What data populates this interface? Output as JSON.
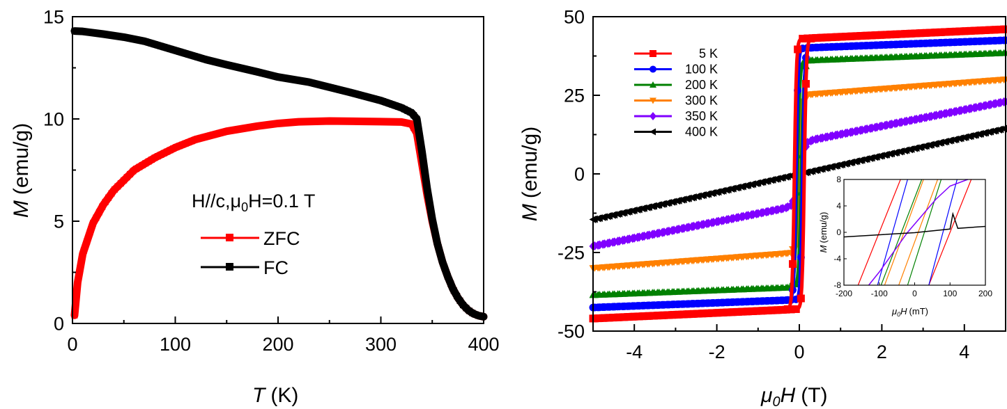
{
  "chart_data": [
    {
      "id": "left",
      "type": "line",
      "xlabel": "(K)",
      "xlabel_var": "T",
      "ylabel": "(emu/g)",
      "ylabel_var": "M",
      "xlim": [
        0,
        400
      ],
      "ylim": [
        0,
        15
      ],
      "xticks": [
        0,
        100,
        200,
        300,
        400
      ],
      "xtick_labels": [
        "0",
        "100",
        "200",
        "300",
        "400"
      ],
      "yticks": [
        0,
        5,
        10,
        15
      ],
      "ytick_labels": [
        "0",
        "5",
        "10",
        "15"
      ],
      "grid": false,
      "legend_title": "H//c,μ0H=0.1 T",
      "legend_title_parts": [
        "H//c,μ",
        "0",
        "H=0.1 T"
      ],
      "legend_position": "center",
      "series": [
        {
          "name": "ZFC",
          "color": "#ff0000",
          "x": [
            2,
            5,
            10,
            20,
            30,
            40,
            50,
            60,
            80,
            100,
            120,
            150,
            180,
            200,
            220,
            250,
            280,
            300,
            320,
            330,
            335,
            340,
            345,
            350,
            355,
            360,
            365,
            370,
            375,
            380,
            385,
            390,
            395,
            400
          ],
          "y": [
            0.4,
            2.0,
            3.4,
            4.9,
            5.8,
            6.5,
            7.0,
            7.5,
            8.1,
            8.6,
            9.0,
            9.4,
            9.65,
            9.78,
            9.86,
            9.9,
            9.88,
            9.87,
            9.85,
            9.75,
            9.3,
            7.8,
            6.3,
            5.0,
            3.9,
            3.0,
            2.3,
            1.7,
            1.25,
            0.9,
            0.65,
            0.48,
            0.38,
            0.33
          ]
        },
        {
          "name": "FC",
          "color": "#000000",
          "x": [
            2,
            10,
            30,
            50,
            70,
            100,
            130,
            150,
            180,
            200,
            230,
            250,
            270,
            300,
            320,
            330,
            335,
            340,
            345,
            350,
            355,
            360,
            365,
            370,
            375,
            380,
            385,
            390,
            395,
            400
          ],
          "y": [
            14.3,
            14.28,
            14.15,
            14.0,
            13.8,
            13.35,
            12.9,
            12.65,
            12.3,
            12.05,
            11.8,
            11.55,
            11.3,
            10.9,
            10.55,
            10.3,
            10.0,
            8.4,
            6.6,
            5.1,
            3.9,
            3.0,
            2.3,
            1.7,
            1.25,
            0.9,
            0.65,
            0.48,
            0.38,
            0.33
          ]
        }
      ]
    },
    {
      "id": "right",
      "type": "line",
      "xlabel": "(T)",
      "xlabel_var": "μ0H",
      "ylabel": "(emu/g)",
      "ylabel_var": "M",
      "xlim": [
        -5,
        5
      ],
      "ylim": [
        -50,
        50
      ],
      "xticks": [
        -4,
        -2,
        0,
        2,
        4
      ],
      "xtick_labels": [
        "-4",
        "-2",
        "0",
        "2",
        "4"
      ],
      "yticks": [
        -50,
        -25,
        0,
        25,
        50
      ],
      "ytick_labels": [
        "-50",
        "-25",
        "0",
        "25",
        "50"
      ],
      "grid": false,
      "legend_position": "top-left",
      "series": [
        {
          "name": "5 K",
          "label": "5 K",
          "color": "#ff0000",
          "marker": "square",
          "Ms": 43.0,
          "slope": 0.6,
          "Hc": 0.12,
          "w": 0.05
        },
        {
          "name": "100 K",
          "label": "100 K",
          "color": "#0000ff",
          "marker": "circle",
          "Ms": 40.0,
          "slope": 0.5,
          "Hc": 0.08,
          "w": 0.05
        },
        {
          "name": "200 K",
          "label": "200 K",
          "color": "#008000",
          "marker": "triangle-up",
          "Ms": 36.0,
          "slope": 0.5,
          "Hc": 0.05,
          "w": 0.06
        },
        {
          "name": "300 K",
          "label": "300 K",
          "color": "#ff8000",
          "marker": "triangle-down",
          "Ms": 25.0,
          "slope": 1.0,
          "Hc": 0.03,
          "w": 0.07
        },
        {
          "name": "350 K",
          "label": "350 K",
          "color": "#8000ff",
          "marker": "diamond",
          "Ms": 10.0,
          "slope": 2.6,
          "Hc": 0.02,
          "w": 0.12
        },
        {
          "name": "400 K",
          "label": "400 K",
          "color": "#000000",
          "marker": "triangle-left",
          "Ms": 0.0,
          "slope": 2.9,
          "Hc": 0.0,
          "w": 0.1
        }
      ],
      "inset": {
        "xlabel": "(mT)",
        "xlabel_var": "μ0H",
        "ylabel": "(emu/g)",
        "ylabel_var": "M",
        "xlim": [
          -200,
          200
        ],
        "ylim": [
          -8,
          8
        ],
        "xticks": [
          -200,
          -100,
          0,
          100,
          200
        ],
        "xtick_labels": [
          "-200",
          "-100",
          "0",
          "100",
          "200"
        ],
        "yticks": [
          -8,
          -4,
          0,
          4,
          8
        ],
        "ytick_labels": [
          "-8",
          "-4",
          "0",
          "4",
          "8"
        ],
        "loops": [
          {
            "name": "5 K",
            "color": "#ff0000",
            "left_branch": [
              [
                -160,
                -8
              ],
              [
                -40,
                8
              ]
            ],
            "right_branch": [
              [
                40,
                -8
              ],
              [
                160,
                8
              ]
            ]
          },
          {
            "name": "100 K",
            "color": "#0000ff",
            "left_branch": [
              [
                -105,
                -8
              ],
              [
                -20,
                8
              ]
            ],
            "right_branch": [
              [
                40,
                -8
              ],
              [
                120,
                8
              ]
            ]
          },
          {
            "name": "200 K",
            "color": "#008000",
            "left_branch": [
              [
                -95,
                -8
              ],
              [
                20,
                8
              ]
            ],
            "right_branch": [
              [
                -20,
                -8
              ],
              [
                75,
                8
              ]
            ]
          },
          {
            "name": "300 K",
            "color": "#ff8000",
            "left_branch": [
              [
                -85,
                -8
              ],
              [
                25,
                8
              ]
            ],
            "right_branch": [
              [
                -45,
                -8
              ],
              [
                65,
                8
              ]
            ]
          },
          {
            "name": "350 K",
            "color": "#8000ff",
            "curve": [
              [
                -130,
                -8
              ],
              [
                -100,
                -6
              ],
              [
                -60,
                -3
              ],
              [
                -20,
                0
              ],
              [
                20,
                2.5
              ],
              [
                60,
                5
              ],
              [
                100,
                7
              ],
              [
                150,
                8
              ]
            ]
          },
          {
            "name": "400 K",
            "color": "#000000",
            "curve": [
              [
                -200,
                -0.7
              ],
              [
                0,
                -0.05
              ],
              [
                100,
                0.5
              ],
              [
                108,
                2.8
              ],
              [
                122,
                0.6
              ],
              [
                200,
                0.9
              ]
            ]
          }
        ]
      }
    }
  ]
}
